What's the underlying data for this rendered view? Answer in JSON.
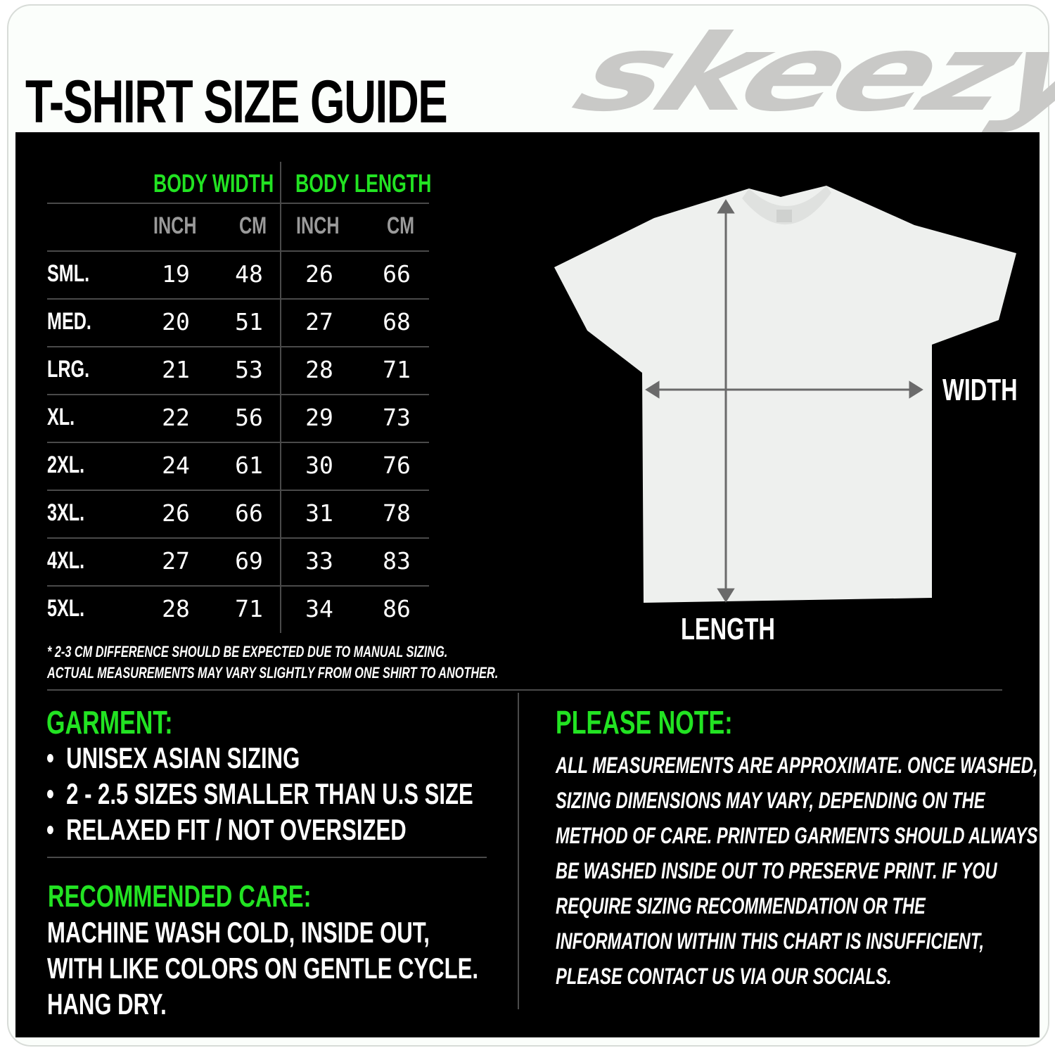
{
  "title": "T-SHIRT SIZE GUIDE",
  "brand": "skeezy",
  "colors": {
    "accent": "#22e322",
    "panel": "#000000",
    "logo": "#c9c9c7"
  },
  "table": {
    "groups": [
      "BODY WIDTH",
      "BODY LENGTH"
    ],
    "units": [
      "INCH",
      "CM",
      "INCH",
      "CM"
    ],
    "rows": [
      {
        "size": "SML.",
        "values": [
          "19",
          "48",
          "26",
          "66"
        ]
      },
      {
        "size": "MED.",
        "values": [
          "20",
          "51",
          "27",
          "68"
        ]
      },
      {
        "size": "LRG.",
        "values": [
          "21",
          "53",
          "28",
          "71"
        ]
      },
      {
        "size": "XL.",
        "values": [
          "22",
          "56",
          "29",
          "73"
        ]
      },
      {
        "size": "2XL.",
        "values": [
          "24",
          "61",
          "30",
          "76"
        ]
      },
      {
        "size": "3XL.",
        "values": [
          "26",
          "66",
          "31",
          "78"
        ]
      },
      {
        "size": "4XL.",
        "values": [
          "27",
          "69",
          "33",
          "83"
        ]
      },
      {
        "size": "5XL.",
        "values": [
          "28",
          "71",
          "34",
          "86"
        ]
      }
    ],
    "footnote": [
      "* 2-3 CM DIFFERENCE SHOULD BE EXPECTED DUE TO MANUAL SIZING.",
      "ACTUAL MEASUREMENTS MAY VARY SLIGHTLY FROM ONE SHIRT TO ANOTHER."
    ]
  },
  "diagram": {
    "width_label": "WIDTH",
    "length_label": "LENGTH"
  },
  "garment": {
    "heading": "GARMENT:",
    "items": [
      "UNISEX ASIAN SIZING",
      "2 - 2.5 SIZES SMALLER THAN U.S SIZE",
      "RELAXED FIT / NOT OVERSIZED"
    ]
  },
  "care": {
    "heading": "RECOMMENDED CARE:",
    "lines": [
      "MACHINE WASH COLD, INSIDE OUT,",
      "WITH LIKE COLORS ON GENTLE CYCLE.",
      "HANG DRY."
    ]
  },
  "note": {
    "heading": "PLEASE NOTE:",
    "lines": [
      "ALL MEASUREMENTS ARE APPROXIMATE. ONCE  WASHED,",
      "SIZING DIMENSIONS MAY VARY, DEPENDING ON THE",
      "METHOD OF CARE. PRINTED GARMENTS SHOULD ALWAYS",
      "BE WASHED INSIDE OUT TO PRESERVE PRINT.  IF YOU",
      "REQUIRE SIZING  RECOMMENDATION OR THE",
      "INFORMATION WITHIN THIS CHART IS INSUFFICIENT,",
      "PLEASE CONTACT US VIA OUR SOCIALS."
    ]
  }
}
